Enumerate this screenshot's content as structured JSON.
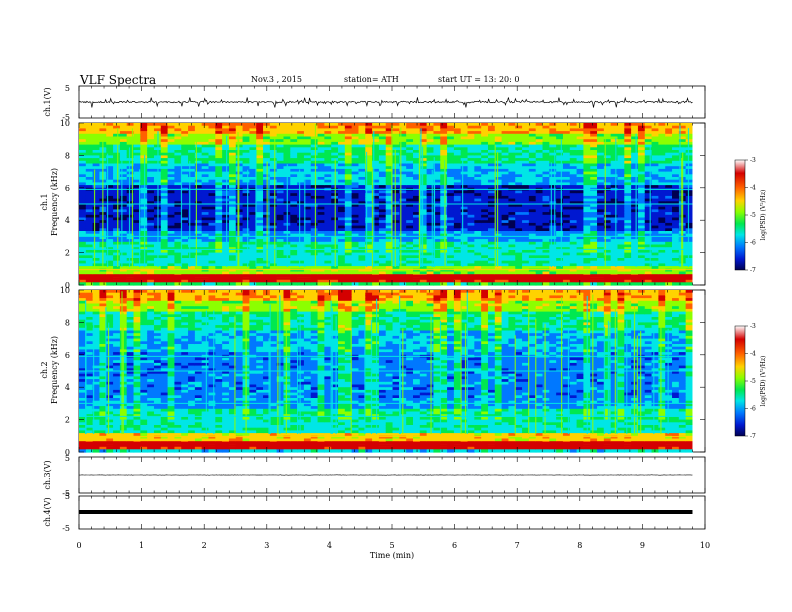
{
  "header": {
    "title": "VLF Spectra",
    "date": "Nov.3 , 2015",
    "station": "station= ATH",
    "start": "start UT = 13: 20: 0"
  },
  "chart_data": [
    {
      "type": "line",
      "panel": "ch1-waveform",
      "ylabel": "ch.1(V)",
      "yticks": [
        "5",
        "-5"
      ],
      "ylim": [
        -5,
        5
      ],
      "description_values": {
        "baseline": 0,
        "spike_extent": [
          -1.8,
          1.5
        ]
      }
    },
    {
      "type": "heatmap",
      "panel": "ch1-spectrogram",
      "ylabel": [
        "ch.1",
        "Frequency (kHz)"
      ],
      "yticks": [
        "0",
        "2",
        "4",
        "6",
        "8",
        "10"
      ],
      "ylim": [
        0,
        10
      ],
      "colorbar": {
        "label": "log(PSD) (V²/Hz)",
        "ticks": [
          "-3",
          "-4",
          "-5",
          "-6",
          "-7"
        ],
        "range": [
          -7,
          -3
        ]
      }
    },
    {
      "type": "heatmap",
      "panel": "ch2-spectrogram",
      "ylabel": [
        "ch.2",
        "Frequency (kHz)"
      ],
      "yticks": [
        "0",
        "2",
        "4",
        "6",
        "8",
        "10"
      ],
      "ylim": [
        0,
        10
      ],
      "colorbar": {
        "label": "log(PSD) (V²/Hz)",
        "ticks": [
          "-3",
          "-4",
          "-5",
          "-6",
          "-7"
        ],
        "range": [
          -7,
          -3
        ]
      }
    },
    {
      "type": "line",
      "panel": "ch3-waveform",
      "ylabel": "ch.3(V)",
      "yticks": [
        "5",
        "-5"
      ],
      "ylim": [
        -5,
        5
      ],
      "description_values": {
        "baseline": 0
      }
    },
    {
      "type": "line",
      "panel": "ch4-waveform",
      "ylabel": "ch.4(V)",
      "yticks": [
        "5",
        "-5"
      ],
      "ylim": [
        -5,
        5
      ],
      "description_values": {
        "baseline": 0
      }
    }
  ],
  "xaxis": {
    "label": "Time (min)",
    "ticks": [
      "0",
      "1",
      "2",
      "3",
      "4",
      "5",
      "6",
      "7",
      "8",
      "9",
      "10"
    ],
    "range": [
      0,
      10
    ],
    "data_end": 9.8
  },
  "colorbar_colors": [
    "#ffffff",
    "#d40000",
    "#ff6000",
    "#ffd200",
    "#8cff00",
    "#00e850",
    "#00e6e6",
    "#0078ff",
    "#0018d0",
    "#000050"
  ]
}
